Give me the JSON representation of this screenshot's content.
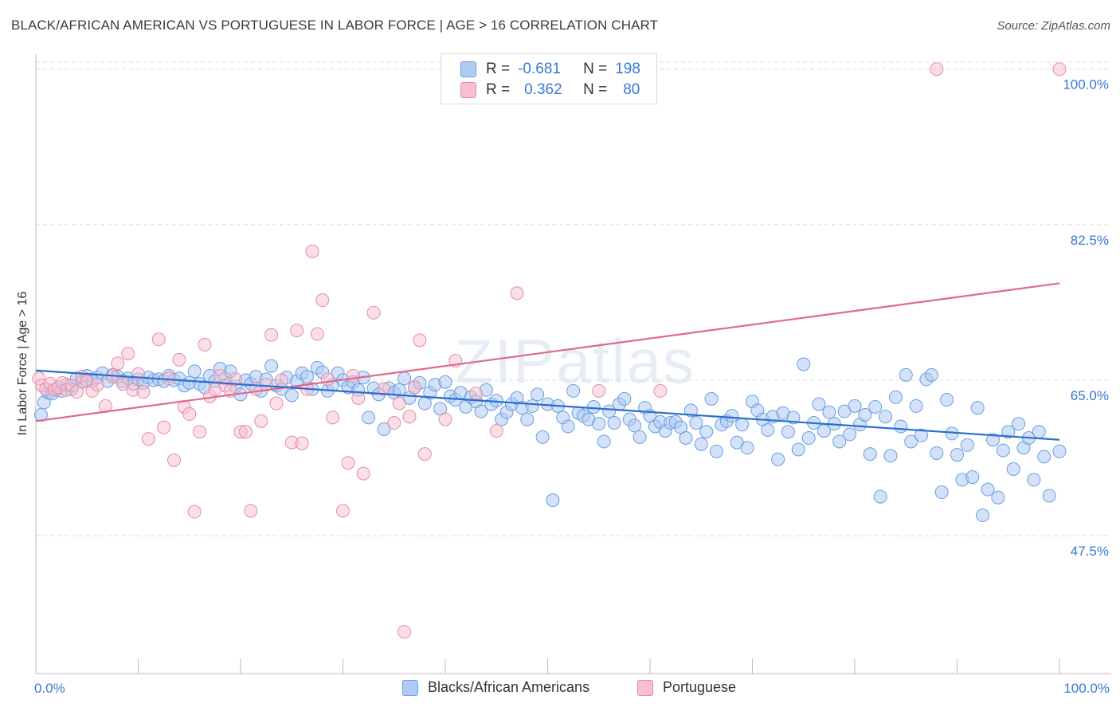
{
  "title": "BLACK/AFRICAN AMERICAN VS PORTUGUESE IN LABOR FORCE | AGE > 16 CORRELATION CHART",
  "source": "Source: ZipAtlas.com",
  "watermark": "ZIPatlas",
  "legend_top": {
    "rows": [
      {
        "r_label": "R =",
        "r_value": "-0.681",
        "n_label": "N =",
        "n_value": "198"
      },
      {
        "r_label": "R =",
        "r_value": "0.362",
        "n_label": "N =",
        "n_value": "80"
      }
    ]
  },
  "bottom_legend": {
    "series1": "Blacks/African Americans",
    "series2": "Portuguese"
  },
  "colors": {
    "blue_fill": "#aecbf2",
    "blue_stroke": "#6a9ee0",
    "blue_line": "#2a6fce",
    "pink_fill": "#f6c0d0",
    "pink_stroke": "#e88aa8",
    "pink_line": "#e0688f",
    "axis_text": "#3a78d4",
    "grid": "#dddddd"
  },
  "chart_data": {
    "type": "scatter",
    "title": "BLACK/AFRICAN AMERICAN VS PORTUGUESE IN LABOR FORCE | AGE > 16 CORRELATION CHART",
    "xlabel": "",
    "ylabel": "In Labor Force | Age > 16",
    "xlim": [
      0,
      100
    ],
    "ylim": [
      32,
      101.5
    ],
    "x_tick_labels": [
      "0.0%",
      "100.0%"
    ],
    "y_ticks": [
      47.5,
      65.0,
      82.5,
      100.0
    ],
    "y_tick_labels": [
      "47.5%",
      "65.0%",
      "82.5%",
      "100.0%"
    ],
    "grid": true,
    "legend_position": "top-center",
    "series": [
      {
        "name": "Blacks/African Americans",
        "r": -0.681,
        "n": 198,
        "trend": {
          "x0": 0,
          "y0": 66.1,
          "x1": 100,
          "y1": 58.3
        },
        "points": [
          [
            0.5,
            61.1
          ],
          [
            0.8,
            62.5
          ],
          [
            1.2,
            63.6
          ],
          [
            1.6,
            63.5
          ],
          [
            2.0,
            64.0
          ],
          [
            2.5,
            63.8
          ],
          [
            3.0,
            64.5
          ],
          [
            3.5,
            64.0
          ],
          [
            4.0,
            65.2
          ],
          [
            4.5,
            64.8
          ],
          [
            5.0,
            65.5
          ],
          [
            5.5,
            64.9
          ],
          [
            6.0,
            65.3
          ],
          [
            6.5,
            65.8
          ],
          [
            7.0,
            64.9
          ],
          [
            7.5,
            65.6
          ],
          [
            8.0,
            65.4
          ],
          [
            8.5,
            64.9
          ],
          [
            9.0,
            65.2
          ],
          [
            9.5,
            64.6
          ],
          [
            10.0,
            65.1
          ],
          [
            10.5,
            64.7
          ],
          [
            11.0,
            65.3
          ],
          [
            11.5,
            65.0
          ],
          [
            12.0,
            65.1
          ],
          [
            12.5,
            64.9
          ],
          [
            13.0,
            65.5
          ],
          [
            13.5,
            65.0
          ],
          [
            14.0,
            65.2
          ],
          [
            14.5,
            64.4
          ],
          [
            15.0,
            64.7
          ],
          [
            15.5,
            66.0
          ],
          [
            16.0,
            64.6
          ],
          [
            16.5,
            64.2
          ],
          [
            17.0,
            65.5
          ],
          [
            17.5,
            64.9
          ],
          [
            18.0,
            66.3
          ],
          [
            18.5,
            65.2
          ],
          [
            19.0,
            66.0
          ],
          [
            19.5,
            64.3
          ],
          [
            20.0,
            63.4
          ],
          [
            20.5,
            65.0
          ],
          [
            21.0,
            64.6
          ],
          [
            21.5,
            65.4
          ],
          [
            22.0,
            63.8
          ],
          [
            22.5,
            65.1
          ],
          [
            23.0,
            66.6
          ],
          [
            23.5,
            64.4
          ],
          [
            24.0,
            64.0
          ],
          [
            24.5,
            65.3
          ],
          [
            25.0,
            63.3
          ],
          [
            25.5,
            64.9
          ],
          [
            26.0,
            65.8
          ],
          [
            26.5,
            65.4
          ],
          [
            27.0,
            64.0
          ],
          [
            27.5,
            66.4
          ],
          [
            28.0,
            65.9
          ],
          [
            28.5,
            63.8
          ],
          [
            29.0,
            64.5
          ],
          [
            29.5,
            65.8
          ],
          [
            30.0,
            65.0
          ],
          [
            30.5,
            64.2
          ],
          [
            31.0,
            64.8
          ],
          [
            31.5,
            63.9
          ],
          [
            32.0,
            65.3
          ],
          [
            32.5,
            60.8
          ],
          [
            33.0,
            64.1
          ],
          [
            33.5,
            63.4
          ],
          [
            34.0,
            59.5
          ],
          [
            34.5,
            64.1
          ],
          [
            35.0,
            63.6
          ],
          [
            35.5,
            63.9
          ],
          [
            36.0,
            65.2
          ],
          [
            36.5,
            63.0
          ],
          [
            37.0,
            64.2
          ],
          [
            37.5,
            64.7
          ],
          [
            38.0,
            62.4
          ],
          [
            38.5,
            63.6
          ],
          [
            39.0,
            64.5
          ],
          [
            39.5,
            61.8
          ],
          [
            40.0,
            64.8
          ],
          [
            40.5,
            63.2
          ],
          [
            41.0,
            62.8
          ],
          [
            41.5,
            63.6
          ],
          [
            42.0,
            62.0
          ],
          [
            42.5,
            63.1
          ],
          [
            43.0,
            62.6
          ],
          [
            43.5,
            61.5
          ],
          [
            44.0,
            63.9
          ],
          [
            44.5,
            62.3
          ],
          [
            45.0,
            62.7
          ],
          [
            45.5,
            60.6
          ],
          [
            46.0,
            61.4
          ],
          [
            46.5,
            62.3
          ],
          [
            47.0,
            63.0
          ],
          [
            47.5,
            61.9
          ],
          [
            48.0,
            60.6
          ],
          [
            48.5,
            62.1
          ],
          [
            49.0,
            63.4
          ],
          [
            49.5,
            58.6
          ],
          [
            50.0,
            62.3
          ],
          [
            50.5,
            51.5
          ],
          [
            51.0,
            62.1
          ],
          [
            51.5,
            60.8
          ],
          [
            52.0,
            59.8
          ],
          [
            52.5,
            63.8
          ],
          [
            53.0,
            61.3
          ],
          [
            53.5,
            61.0
          ],
          [
            54.0,
            60.6
          ],
          [
            54.5,
            62.0
          ],
          [
            55.0,
            60.1
          ],
          [
            55.5,
            58.1
          ],
          [
            56.0,
            61.5
          ],
          [
            56.5,
            60.2
          ],
          [
            57.0,
            62.3
          ],
          [
            57.5,
            62.9
          ],
          [
            58.0,
            60.6
          ],
          [
            58.5,
            59.9
          ],
          [
            59.0,
            58.6
          ],
          [
            59.5,
            61.9
          ],
          [
            60.0,
            61.0
          ],
          [
            60.5,
            59.8
          ],
          [
            61.0,
            60.3
          ],
          [
            61.5,
            59.3
          ],
          [
            62.0,
            60.2
          ],
          [
            62.5,
            60.3
          ],
          [
            63.0,
            59.7
          ],
          [
            63.5,
            58.5
          ],
          [
            64.0,
            61.6
          ],
          [
            64.5,
            60.2
          ],
          [
            65.0,
            57.8
          ],
          [
            65.5,
            59.2
          ],
          [
            66.0,
            62.9
          ],
          [
            66.5,
            57.0
          ],
          [
            67.0,
            60.0
          ],
          [
            67.5,
            60.4
          ],
          [
            68.0,
            61.0
          ],
          [
            68.5,
            58.0
          ],
          [
            69.0,
            60.0
          ],
          [
            69.5,
            57.4
          ],
          [
            70.0,
            62.6
          ],
          [
            70.5,
            61.6
          ],
          [
            71.0,
            60.6
          ],
          [
            71.5,
            59.4
          ],
          [
            72.0,
            60.9
          ],
          [
            72.5,
            56.1
          ],
          [
            73.0,
            61.3
          ],
          [
            73.5,
            59.2
          ],
          [
            74.0,
            60.8
          ],
          [
            74.5,
            57.2
          ],
          [
            75.0,
            66.8
          ],
          [
            75.5,
            58.5
          ],
          [
            76.0,
            60.2
          ],
          [
            76.5,
            62.3
          ],
          [
            77.0,
            59.3
          ],
          [
            77.5,
            61.4
          ],
          [
            78.0,
            60.1
          ],
          [
            78.5,
            58.1
          ],
          [
            79.0,
            61.5
          ],
          [
            79.5,
            58.9
          ],
          [
            80.0,
            62.1
          ],
          [
            80.5,
            60.0
          ],
          [
            81.0,
            61.1
          ],
          [
            81.5,
            56.7
          ],
          [
            82.0,
            62.0
          ],
          [
            82.5,
            51.9
          ],
          [
            83.0,
            60.9
          ],
          [
            83.5,
            56.5
          ],
          [
            84.0,
            63.1
          ],
          [
            84.5,
            59.8
          ],
          [
            85.0,
            65.6
          ],
          [
            85.5,
            58.1
          ],
          [
            86.0,
            62.1
          ],
          [
            86.5,
            58.8
          ],
          [
            87.0,
            65.1
          ],
          [
            87.5,
            65.6
          ],
          [
            88.0,
            56.8
          ],
          [
            88.5,
            52.4
          ],
          [
            89.0,
            62.8
          ],
          [
            89.5,
            59.0
          ],
          [
            90.0,
            56.6
          ],
          [
            90.5,
            53.8
          ],
          [
            91.0,
            57.7
          ],
          [
            91.5,
            54.1
          ],
          [
            92.0,
            61.9
          ],
          [
            92.5,
            49.8
          ],
          [
            93.0,
            52.7
          ],
          [
            93.5,
            58.3
          ],
          [
            94.0,
            51.8
          ],
          [
            94.5,
            57.1
          ],
          [
            95.0,
            59.2
          ],
          [
            95.5,
            55.0
          ],
          [
            96.0,
            60.1
          ],
          [
            96.5,
            57.4
          ],
          [
            97.0,
            58.5
          ],
          [
            97.5,
            53.8
          ],
          [
            98.0,
            59.2
          ],
          [
            98.5,
            56.4
          ],
          [
            99.0,
            52.0
          ],
          [
            100.0,
            57.0
          ]
        ]
      },
      {
        "name": "Portuguese",
        "r": 0.362,
        "n": 80,
        "trend": {
          "x0": 0,
          "y0": 60.4,
          "x1": 100,
          "y1": 75.9
        },
        "points": [
          [
            0.3,
            65.2
          ],
          [
            0.6,
            64.4
          ],
          [
            1.0,
            64.0
          ],
          [
            1.4,
            64.6
          ],
          [
            1.8,
            63.9
          ],
          [
            2.2,
            64.2
          ],
          [
            2.6,
            64.7
          ],
          [
            3.0,
            63.9
          ],
          [
            3.5,
            64.4
          ],
          [
            4.0,
            63.7
          ],
          [
            4.5,
            65.4
          ],
          [
            5.0,
            64.9
          ],
          [
            5.5,
            63.8
          ],
          [
            6.0,
            64.5
          ],
          [
            6.8,
            62.1
          ],
          [
            7.5,
            65.4
          ],
          [
            8.0,
            66.9
          ],
          [
            8.5,
            64.6
          ],
          [
            9.0,
            68.0
          ],
          [
            9.5,
            63.9
          ],
          [
            10.0,
            65.7
          ],
          [
            10.5,
            63.7
          ],
          [
            11.0,
            58.4
          ],
          [
            12.0,
            69.6
          ],
          [
            12.5,
            59.7
          ],
          [
            13.0,
            65.2
          ],
          [
            13.5,
            56.0
          ],
          [
            14.0,
            67.3
          ],
          [
            14.5,
            62.0
          ],
          [
            15.0,
            61.2
          ],
          [
            15.5,
            50.2
          ],
          [
            16.0,
            59.2
          ],
          [
            16.5,
            69.0
          ],
          [
            17.0,
            63.2
          ],
          [
            17.5,
            64.0
          ],
          [
            18.0,
            65.5
          ],
          [
            18.5,
            64.4
          ],
          [
            19.0,
            63.8
          ],
          [
            19.5,
            65.1
          ],
          [
            20.0,
            59.2
          ],
          [
            20.5,
            59.2
          ],
          [
            21.0,
            50.3
          ],
          [
            21.5,
            64.0
          ],
          [
            22.0,
            60.4
          ],
          [
            22.5,
            64.5
          ],
          [
            23.0,
            70.1
          ],
          [
            23.5,
            62.4
          ],
          [
            24.0,
            65.0
          ],
          [
            25.0,
            58.0
          ],
          [
            25.5,
            70.6
          ],
          [
            26.0,
            57.9
          ],
          [
            26.5,
            64.0
          ],
          [
            27.0,
            79.5
          ],
          [
            27.5,
            70.2
          ],
          [
            28.0,
            74.0
          ],
          [
            28.5,
            65.1
          ],
          [
            29.0,
            60.8
          ],
          [
            30.0,
            50.3
          ],
          [
            30.5,
            55.7
          ],
          [
            31.0,
            65.5
          ],
          [
            31.5,
            63.0
          ],
          [
            32.0,
            54.5
          ],
          [
            33.0,
            72.6
          ],
          [
            34.0,
            64.0
          ],
          [
            35.0,
            60.2
          ],
          [
            35.5,
            62.4
          ],
          [
            36.0,
            36.7
          ],
          [
            36.5,
            60.9
          ],
          [
            37.0,
            64.2
          ],
          [
            37.5,
            69.5
          ],
          [
            38.0,
            56.7
          ],
          [
            40.0,
            60.6
          ],
          [
            41.0,
            67.2
          ],
          [
            43.0,
            63.5
          ],
          [
            45.0,
            59.3
          ],
          [
            47.0,
            74.8
          ],
          [
            55.0,
            63.8
          ],
          [
            61.0,
            63.8
          ],
          [
            88.0,
            100.0
          ],
          [
            100.0,
            100.0
          ]
        ]
      }
    ]
  }
}
